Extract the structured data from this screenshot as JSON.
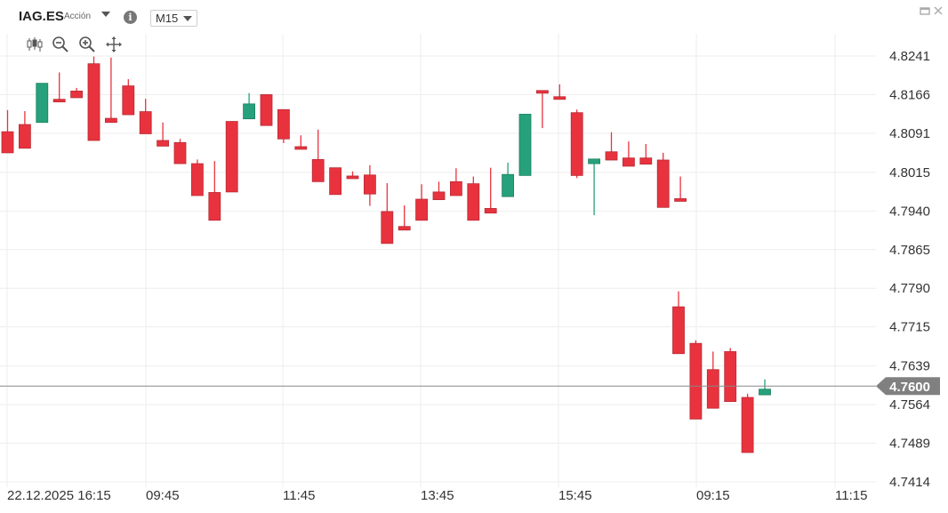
{
  "header": {
    "symbol": "IAG.ES",
    "instrument_type": "Acción",
    "timeframe": "M15",
    "window_controls": [
      "minimize-icon",
      "close-icon"
    ],
    "info_glyph": "i"
  },
  "toolbar": {
    "icons": [
      "candlestick-icon",
      "zoom-out-icon",
      "zoom-in-icon",
      "pan-move-icon"
    ]
  },
  "colors": {
    "up": "#26a17b",
    "down": "#e8333f",
    "grid": "#eeeeee",
    "price_line": "#888888",
    "price_tag": "#808080"
  },
  "chart_data": {
    "type": "candlestick",
    "current_price": "4.7600",
    "y_ticks": [
      "4.8241",
      "4.8166",
      "4.8091",
      "4.8015",
      "4.7940",
      "4.7865",
      "4.7790",
      "4.7715",
      "4.7639",
      "4.7564",
      "4.7489",
      "4.7414"
    ],
    "x_ticks": [
      "22.12.2025 16:15",
      "09:45",
      "11:45",
      "13:45",
      "15:45",
      "09:15",
      "11:15"
    ],
    "ylim": [
      4.7414,
      4.8241
    ],
    "candles": [
      [
        4.8094,
        4.8136,
        4.8055,
        4.8053
      ],
      [
        4.8108,
        4.8134,
        4.8082,
        4.8062
      ],
      [
        4.8112,
        4.8165,
        4.8112,
        4.8188
      ],
      [
        4.8157,
        4.8209,
        4.8157,
        4.8154
      ],
      [
        4.8173,
        4.8179,
        4.8174,
        4.816
      ],
      [
        4.8226,
        4.824,
        4.8224,
        4.8077
      ],
      [
        4.812,
        4.8238,
        4.8122,
        4.8112
      ],
      [
        4.8183,
        4.8196,
        4.8183,
        4.8127
      ],
      [
        4.8133,
        4.8158,
        4.8133,
        4.809
      ],
      [
        4.8077,
        4.8112,
        4.8075,
        4.8066
      ],
      [
        4.8073,
        4.808,
        4.8071,
        4.8032
      ],
      [
        4.8032,
        4.804,
        4.7974,
        4.797
      ],
      [
        4.7976,
        4.8037,
        4.7976,
        4.7922
      ],
      [
        4.8114,
        4.8114,
        4.8024,
        4.7977
      ],
      [
        4.8119,
        4.8169,
        4.8119,
        4.8148
      ],
      [
        4.8166,
        4.8166,
        4.8121,
        4.8106
      ],
      [
        4.8137,
        4.8137,
        4.8072,
        4.808
      ],
      [
        4.8065,
        4.8087,
        4.8065,
        4.8064
      ],
      [
        4.804,
        4.8098,
        4.804,
        4.7997
      ],
      [
        4.8024,
        4.8008,
        4.7978,
        4.7972
      ],
      [
        4.8008,
        4.8017,
        4.8008,
        4.8003
      ],
      [
        4.801,
        4.8029,
        4.795,
        4.7973
      ],
      [
        4.7939,
        4.7994,
        4.7939,
        4.7877
      ],
      [
        4.791,
        4.7951,
        4.791,
        4.7903
      ],
      [
        4.7963,
        4.7992,
        4.7963,
        4.7922
      ],
      [
        4.7977,
        4.7997,
        4.798,
        4.7962
      ],
      [
        4.7997,
        4.8023,
        4.7997,
        4.797
      ],
      [
        4.7993,
        4.8007,
        4.7935,
        4.7922
      ],
      [
        4.7945,
        4.8024,
        4.7945,
        4.7936
      ],
      [
        4.7968,
        4.8034,
        4.7968,
        4.8011
      ],
      [
        4.8009,
        4.8104,
        4.8009,
        4.8128
      ],
      [
        4.8174,
        4.8129,
        4.8101,
        4.8171
      ],
      [
        4.8162,
        4.8186,
        4.818,
        4.8161
      ],
      [
        4.8131,
        4.8137,
        4.8004,
        4.8009
      ],
      [
        4.8032,
        4.8036,
        4.7932,
        4.8041
      ],
      [
        4.8055,
        4.8093,
        4.8055,
        4.8039
      ],
      [
        4.8043,
        4.8075,
        4.8043,
        4.8027
      ],
      [
        4.8043,
        4.807,
        4.8043,
        4.8031
      ],
      [
        4.8039,
        4.8053,
        4.797,
        4.7947
      ],
      [
        4.7964,
        4.8007,
        4.7964,
        4.7963
      ]
    ],
    "candles_day2": [
      [
        4.7754,
        4.7784,
        4.7696,
        4.7663
      ],
      [
        4.7683,
        4.7689,
        4.7646,
        4.7536
      ],
      [
        4.7632,
        4.7667,
        4.7654,
        4.7557
      ],
      [
        4.7667,
        4.7674,
        4.7577,
        4.757
      ],
      [
        4.7578,
        4.7585,
        4.7578,
        4.7471
      ],
      [
        4.7583,
        4.7613,
        4.7583,
        4.7594
      ]
    ]
  }
}
